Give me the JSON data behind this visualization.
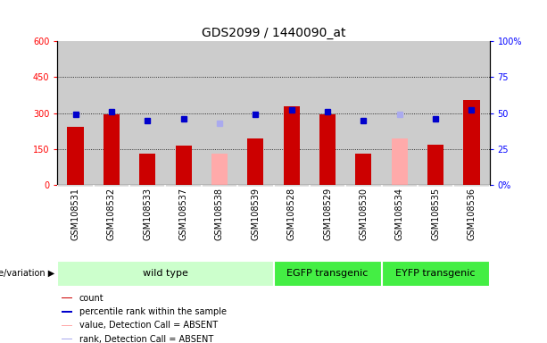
{
  "title": "GDS2099 / 1440090_at",
  "samples": [
    "GSM108531",
    "GSM108532",
    "GSM108533",
    "GSM108537",
    "GSM108538",
    "GSM108539",
    "GSM108528",
    "GSM108529",
    "GSM108530",
    "GSM108534",
    "GSM108535",
    "GSM108536"
  ],
  "count_values": [
    245,
    295,
    130,
    165,
    null,
    195,
    330,
    295,
    130,
    null,
    170,
    355
  ],
  "absent_count_values": [
    null,
    null,
    null,
    null,
    130,
    null,
    null,
    null,
    null,
    195,
    null,
    null
  ],
  "percentile_values": [
    49,
    51,
    45,
    46,
    null,
    49,
    52,
    51,
    45,
    null,
    46,
    52
  ],
  "absent_percentile_values": [
    null,
    null,
    null,
    null,
    43,
    null,
    null,
    null,
    null,
    49,
    null,
    null
  ],
  "groups": [
    {
      "label": "wild type",
      "start": 0,
      "end": 5,
      "color": "#ccffcc"
    },
    {
      "label": "EGFP transgenic",
      "start": 6,
      "end": 8,
      "color": "#44ee44"
    },
    {
      "label": "EYFP transgenic",
      "start": 9,
      "end": 11,
      "color": "#44ee44"
    }
  ],
  "bar_color": "#cc0000",
  "absent_bar_color": "#ffaaaa",
  "percentile_color": "#0000cc",
  "absent_percentile_color": "#aaaaee",
  "bg_color": "#cccccc",
  "left_ylim": [
    0,
    600
  ],
  "right_ylim": [
    0,
    100
  ],
  "left_yticks": [
    0,
    150,
    300,
    450,
    600
  ],
  "left_yticklabels": [
    "0",
    "150",
    "300",
    "450",
    "600"
  ],
  "right_yticks": [
    0,
    25,
    50,
    75,
    100
  ],
  "right_yticklabels": [
    "0%",
    "25",
    "50",
    "75",
    "100%"
  ],
  "grid_lines": [
    150,
    300,
    450
  ],
  "percentile_scale": 6,
  "title_fontsize": 10,
  "tick_fontsize": 7,
  "label_fontsize": 7,
  "legend_fontsize": 7,
  "group_label_fontsize": 8
}
